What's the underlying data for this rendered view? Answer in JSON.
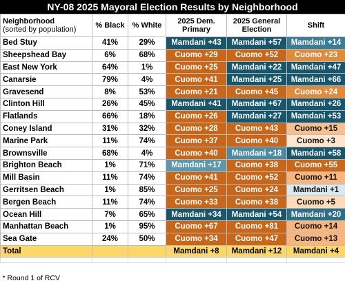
{
  "title": "NY-08 2025 Mayoral Election Results by Neighborhood",
  "header": [
    "Neighborhood",
    "% Black",
    "% White",
    "2025 Dem. Primary",
    "2025 General Election",
    "Shift"
  ],
  "header_note": "(sorted by population)",
  "rows": [
    {
      "cells": [
        "Bed Stuy",
        "41%",
        "29%"
      ],
      "results": [
        {
          "text": "Mamdani +43",
          "color": "#17566b"
        },
        {
          "text": "Mamdani +57",
          "color": "#17566b"
        },
        {
          "text": "Mamdani +14",
          "color": "#3a7d94"
        }
      ]
    },
    {
      "cells": [
        "Sheepshead Bay",
        "6%",
        "68%"
      ],
      "results": [
        {
          "text": "Cuomo +29",
          "color": "#c8661a"
        },
        {
          "text": "Cuomo +52",
          "color": "#c8661a"
        },
        {
          "text": "Cuomo +23",
          "color": "#e08a3c"
        }
      ]
    },
    {
      "cells": [
        "East New York",
        "64%",
        "1%"
      ],
      "results": [
        {
          "text": "Cuomo +25",
          "color": "#c8661a"
        },
        {
          "text": "Mamdani +22",
          "color": "#17566b"
        },
        {
          "text": "Mamdani +47",
          "color": "#17566b"
        }
      ]
    },
    {
      "cells": [
        "Canarsie",
        "79%",
        "4%"
      ],
      "results": [
        {
          "text": "Cuomo +41",
          "color": "#c8661a"
        },
        {
          "text": "Mamdani +25",
          "color": "#17566b"
        },
        {
          "text": "Mamdani +66",
          "color": "#17566b"
        }
      ]
    },
    {
      "cells": [
        "Gravesend",
        "8%",
        "53%"
      ],
      "results": [
        {
          "text": "Cuomo +21",
          "color": "#c8661a"
        },
        {
          "text": "Cuomo +45",
          "color": "#c8661a"
        },
        {
          "text": "Cuomo +24",
          "color": "#e08a3c"
        }
      ]
    },
    {
      "cells": [
        "Clinton Hill",
        "26%",
        "45%"
      ],
      "results": [
        {
          "text": "Mamdani +41",
          "color": "#17566b"
        },
        {
          "text": "Mamdani +67",
          "color": "#17566b"
        },
        {
          "text": "Mamdani +26",
          "color": "#17566b"
        }
      ]
    },
    {
      "cells": [
        "Flatlands",
        "66%",
        "18%"
      ],
      "results": [
        {
          "text": "Cuomo +26",
          "color": "#c8661a"
        },
        {
          "text": "Mamdani +27",
          "color": "#17566b"
        },
        {
          "text": "Mamdani +53",
          "color": "#17566b"
        }
      ]
    },
    {
      "cells": [
        "Coney Island",
        "31%",
        "32%"
      ],
      "results": [
        {
          "text": "Cuomo +28",
          "color": "#c8661a"
        },
        {
          "text": "Cuomo +43",
          "color": "#c8661a"
        },
        {
          "text": "Cuomo +15",
          "color": "#f6c08e"
        }
      ]
    },
    {
      "cells": [
        "Marine Park",
        "11%",
        "74%"
      ],
      "results": [
        {
          "text": "Cuomo +37",
          "color": "#c8661a"
        },
        {
          "text": "Cuomo +40",
          "color": "#c8661a"
        },
        {
          "text": "Cuomo +3",
          "color": "#fde6cd"
        }
      ]
    },
    {
      "cells": [
        "Brownsville",
        "68%",
        "4%"
      ],
      "results": [
        {
          "text": "Cuomo +40",
          "color": "#c8661a"
        },
        {
          "text": "Mamdani +18",
          "color": "#4b8ba3"
        },
        {
          "text": "Mamdani +58",
          "color": "#17566b"
        }
      ]
    },
    {
      "cells": [
        "Brighton Beach",
        "1%",
        "71%"
      ],
      "results": [
        {
          "text": "Mamdani +17",
          "color": "#5b97ad"
        },
        {
          "text": "Cuomo +38",
          "color": "#c8661a"
        },
        {
          "text": "Cuomo +55",
          "color": "#c8661a"
        }
      ]
    },
    {
      "cells": [
        "Mill Basin",
        "11%",
        "74%"
      ],
      "results": [
        {
          "text": "Cuomo +41",
          "color": "#c8661a"
        },
        {
          "text": "Cuomo +52",
          "color": "#c8661a"
        },
        {
          "text": "Cuomo +11",
          "color": "#f6b680"
        }
      ]
    },
    {
      "cells": [
        "Gerritsen Beach",
        "1%",
        "85%"
      ],
      "results": [
        {
          "text": "Cuomo +25",
          "color": "#c8661a"
        },
        {
          "text": "Cuomo +24",
          "color": "#c8661a"
        },
        {
          "text": "Mamdani +1",
          "color": "#dbe9ef"
        }
      ]
    },
    {
      "cells": [
        "Bergen Beach",
        "11%",
        "74%"
      ],
      "results": [
        {
          "text": "Cuomo +33",
          "color": "#c8661a"
        },
        {
          "text": "Cuomo +38",
          "color": "#c8661a"
        },
        {
          "text": "Cuomo +5",
          "color": "#fbdbb9"
        }
      ]
    },
    {
      "cells": [
        "Ocean Hill",
        "7%",
        "65%"
      ],
      "results": [
        {
          "text": "Mamdani +34",
          "color": "#17566b"
        },
        {
          "text": "Mamdani +54",
          "color": "#17566b"
        },
        {
          "text": "Mamdani +20",
          "color": "#2e6f86"
        }
      ]
    },
    {
      "cells": [
        "Manhattan Beach",
        "1%",
        "95%"
      ],
      "results": [
        {
          "text": "Cuomo +67",
          "color": "#c8661a"
        },
        {
          "text": "Cuomo +81",
          "color": "#c8661a"
        },
        {
          "text": "Cuomo +14",
          "color": "#f6b680"
        }
      ]
    },
    {
      "cells": [
        "Sea Gate",
        "24%",
        "50%"
      ],
      "results": [
        {
          "text": "Cuomo +34",
          "color": "#c8661a"
        },
        {
          "text": "Cuomo +47",
          "color": "#c8661a"
        },
        {
          "text": "Cuomo +13",
          "color": "#f6b680"
        }
      ]
    }
  ],
  "total": {
    "label": "Total",
    "results": [
      "Mamdani +8",
      "Mamdani +12",
      "Mamdani +4"
    ]
  },
  "footnote": "* Round 1 of RCV"
}
